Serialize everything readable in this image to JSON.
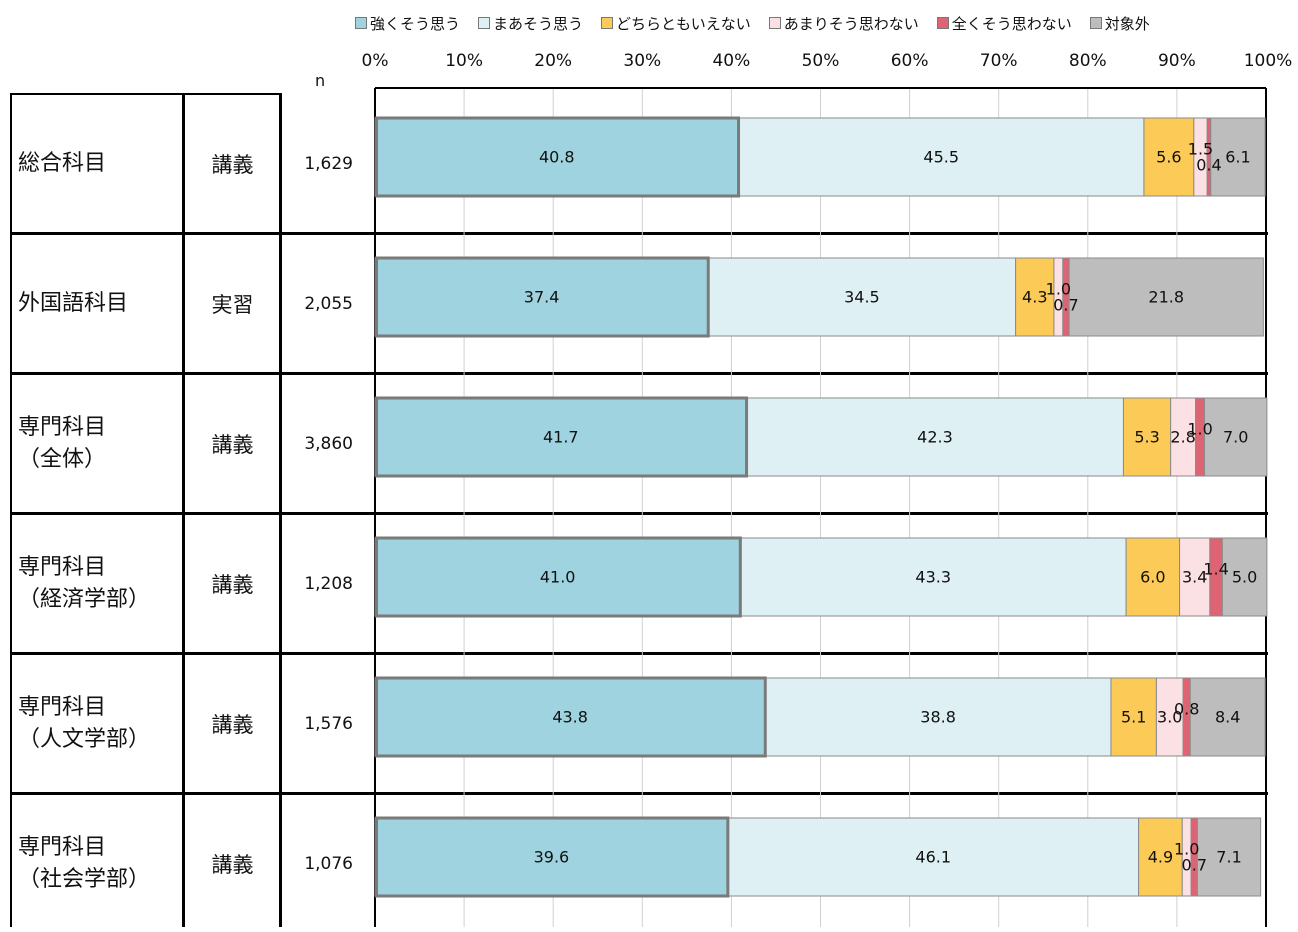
{
  "chart_data": {
    "type": "bar",
    "orientation": "horizontal",
    "stacked": true,
    "x_ticks": [
      "0%",
      "10%",
      "20%",
      "30%",
      "40%",
      "50%",
      "60%",
      "70%",
      "80%",
      "90%",
      "100%"
    ],
    "xlim": [
      0,
      100
    ],
    "grid": true,
    "legend_position": "top",
    "n_header": "n",
    "series": [
      {
        "name": "強くそう思う",
        "color": "#9fd3df"
      },
      {
        "name": "まあそう思う",
        "color": "#def0f4"
      },
      {
        "name": "どちらともいえない",
        "color": "#fcca56"
      },
      {
        "name": "あまりそう思わない",
        "color": "#fbe0e4"
      },
      {
        "name": "全くそう思わない",
        "color": "#de6474"
      },
      {
        "name": "対象外",
        "color": "#bdbdbd"
      }
    ],
    "rows": [
      {
        "subject": [
          "総合科目"
        ],
        "type": "講義",
        "n": "1,629",
        "values": [
          40.8,
          45.5,
          5.6,
          1.5,
          0.4,
          6.1
        ],
        "labels": [
          "40.8",
          "45.5",
          "5.6",
          "1.5",
          "0.4",
          "6.1"
        ]
      },
      {
        "subject": [
          "外国語科目"
        ],
        "type": "実習",
        "n": "2,055",
        "values": [
          37.4,
          34.5,
          4.3,
          1.0,
          0.7,
          21.8
        ],
        "labels": [
          "37.4",
          "34.5",
          "4.3",
          "1.0",
          "0.7",
          "21.8"
        ]
      },
      {
        "subject": [
          "専門科目",
          "（全体）"
        ],
        "type": "講義",
        "n": "3,860",
        "values": [
          41.7,
          42.3,
          5.3,
          2.8,
          1.0,
          7.0
        ],
        "labels": [
          "41.7",
          "42.3",
          "5.3",
          "2.8",
          "1.0",
          "7.0"
        ]
      },
      {
        "subject": [
          "専門科目",
          "（経済学部）"
        ],
        "type": "講義",
        "n": "1,208",
        "values": [
          41.0,
          43.3,
          6.0,
          3.4,
          1.4,
          5.0
        ],
        "labels": [
          "41.0",
          "43.3",
          "6.0",
          "3.4",
          "1.4",
          "5.0"
        ]
      },
      {
        "subject": [
          "専門科目",
          "（人文学部）"
        ],
        "type": "講義",
        "n": "1,576",
        "values": [
          43.8,
          38.8,
          5.1,
          3.0,
          0.8,
          8.4
        ],
        "labels": [
          "43.8",
          "38.8",
          "5.1",
          "3.0",
          "0.8",
          "8.4"
        ]
      },
      {
        "subject": [
          "専門科目",
          "（社会学部）"
        ],
        "type": "講義",
        "n": "1,076",
        "values": [
          39.6,
          46.1,
          4.9,
          1.0,
          0.7,
          7.1
        ],
        "labels": [
          "39.6",
          "46.1",
          "4.9",
          "1.0",
          "0.7",
          "7.1"
        ]
      }
    ]
  }
}
